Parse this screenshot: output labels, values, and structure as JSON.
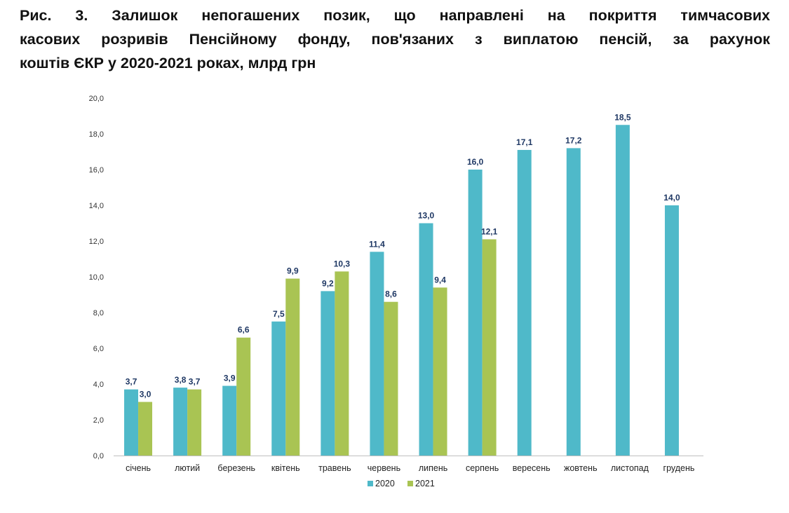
{
  "title": {
    "lines": [
      "Рис. 3. Залишок непогашених позик, що направлені на покриття тимчасових",
      "касових розривів Пенсійному фонду, пов'язаних з виплатою пенсій, за рахунок",
      "коштів ЄКР у 2020-2021 роках, млрд грн"
    ]
  },
  "colors": {
    "s2020": "#4fb9c9",
    "s2021": "#a9c453",
    "axis": "#bfbfbf",
    "label": "#1f3864"
  },
  "chart_data": {
    "type": "bar",
    "title": "Рис. 3. Залишок непогашених позик, що направлені на покриття тимчасових касових розривів Пенсійному фонду, пов'язаних з виплатою пенсій, за рахунок коштів ЄКР у 2020-2021 роках, млрд грн",
    "categories": [
      "січень",
      "лютий",
      "березень",
      "квітень",
      "травень",
      "червень",
      "липень",
      "серпень",
      "вересень",
      "жовтень",
      "листопад",
      "грудень"
    ],
    "series": [
      {
        "name": "2020",
        "values": [
          3.7,
          3.8,
          3.9,
          7.5,
          9.2,
          11.4,
          13.0,
          16.0,
          17.1,
          17.2,
          18.5,
          14.0
        ],
        "labels": [
          "3,7",
          "3,8",
          "3,9",
          "7,5",
          "9,2",
          "11,4",
          "13,0",
          "16,0",
          "17,1",
          "17,2",
          "18,5",
          "14,0"
        ]
      },
      {
        "name": "2021",
        "values": [
          3.0,
          3.7,
          6.6,
          9.9,
          10.3,
          8.6,
          9.4,
          12.1,
          null,
          null,
          null,
          null
        ],
        "labels": [
          "3,0",
          "3,7",
          "6,6",
          "9,9",
          "10,3",
          "8,6",
          "9,4",
          "12,1",
          null,
          null,
          null,
          null
        ]
      }
    ],
    "yticks": [
      "0,0",
      "2,0",
      "4,0",
      "6,0",
      "8,0",
      "10,0",
      "12,0",
      "14,0",
      "16,0",
      "18,0",
      "20,0"
    ],
    "ylim": [
      0,
      20
    ],
    "xlabel": "",
    "ylabel": "",
    "legend": {
      "position": "bottom",
      "entries": [
        "2020",
        "2021"
      ]
    }
  }
}
